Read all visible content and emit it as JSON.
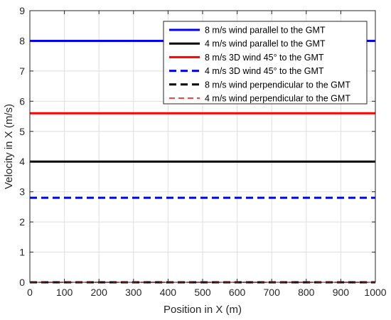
{
  "chart_data": {
    "type": "line",
    "title": "",
    "xlabel": "Position in X (m)",
    "ylabel": "Velocity in X (m/s)",
    "xlim": [
      0,
      1000
    ],
    "ylim": [
      0,
      9
    ],
    "xticks": [
      0,
      100,
      200,
      300,
      400,
      500,
      600,
      700,
      800,
      900,
      1000
    ],
    "yticks": [
      0,
      1,
      2,
      3,
      4,
      5,
      6,
      7,
      8,
      9
    ],
    "grid": true,
    "legend_position": "top-right",
    "x": [
      0,
      1000
    ],
    "series": [
      {
        "name": "8 m/s wind parallel to the GMT",
        "values": [
          8,
          8
        ],
        "color": "#0000ff",
        "style": "solid",
        "width": "thick"
      },
      {
        "name": "4 m/s wind parallel to the GMT",
        "values": [
          4,
          4
        ],
        "color": "#000000",
        "style": "solid",
        "width": "thick"
      },
      {
        "name": "8 m/s 3D wind 45° to the GMT",
        "values": [
          5.6,
          5.6
        ],
        "color": "#ff0000",
        "style": "solid",
        "width": "thick"
      },
      {
        "name": "4 m/s 3D wind 45° to the GMT",
        "values": [
          2.8,
          2.8
        ],
        "color": "#0000ff",
        "style": "dashed",
        "width": "thick"
      },
      {
        "name": "8 m/s wind perpendicular to the GMT",
        "values": [
          0,
          0
        ],
        "color": "#000000",
        "style": "dashed",
        "width": "thick"
      },
      {
        "name": "4 m/s wind perpendicular to the GMT",
        "values": [
          0,
          0
        ],
        "color": "#ff0000",
        "style": "dashed",
        "width": "thin"
      }
    ]
  }
}
